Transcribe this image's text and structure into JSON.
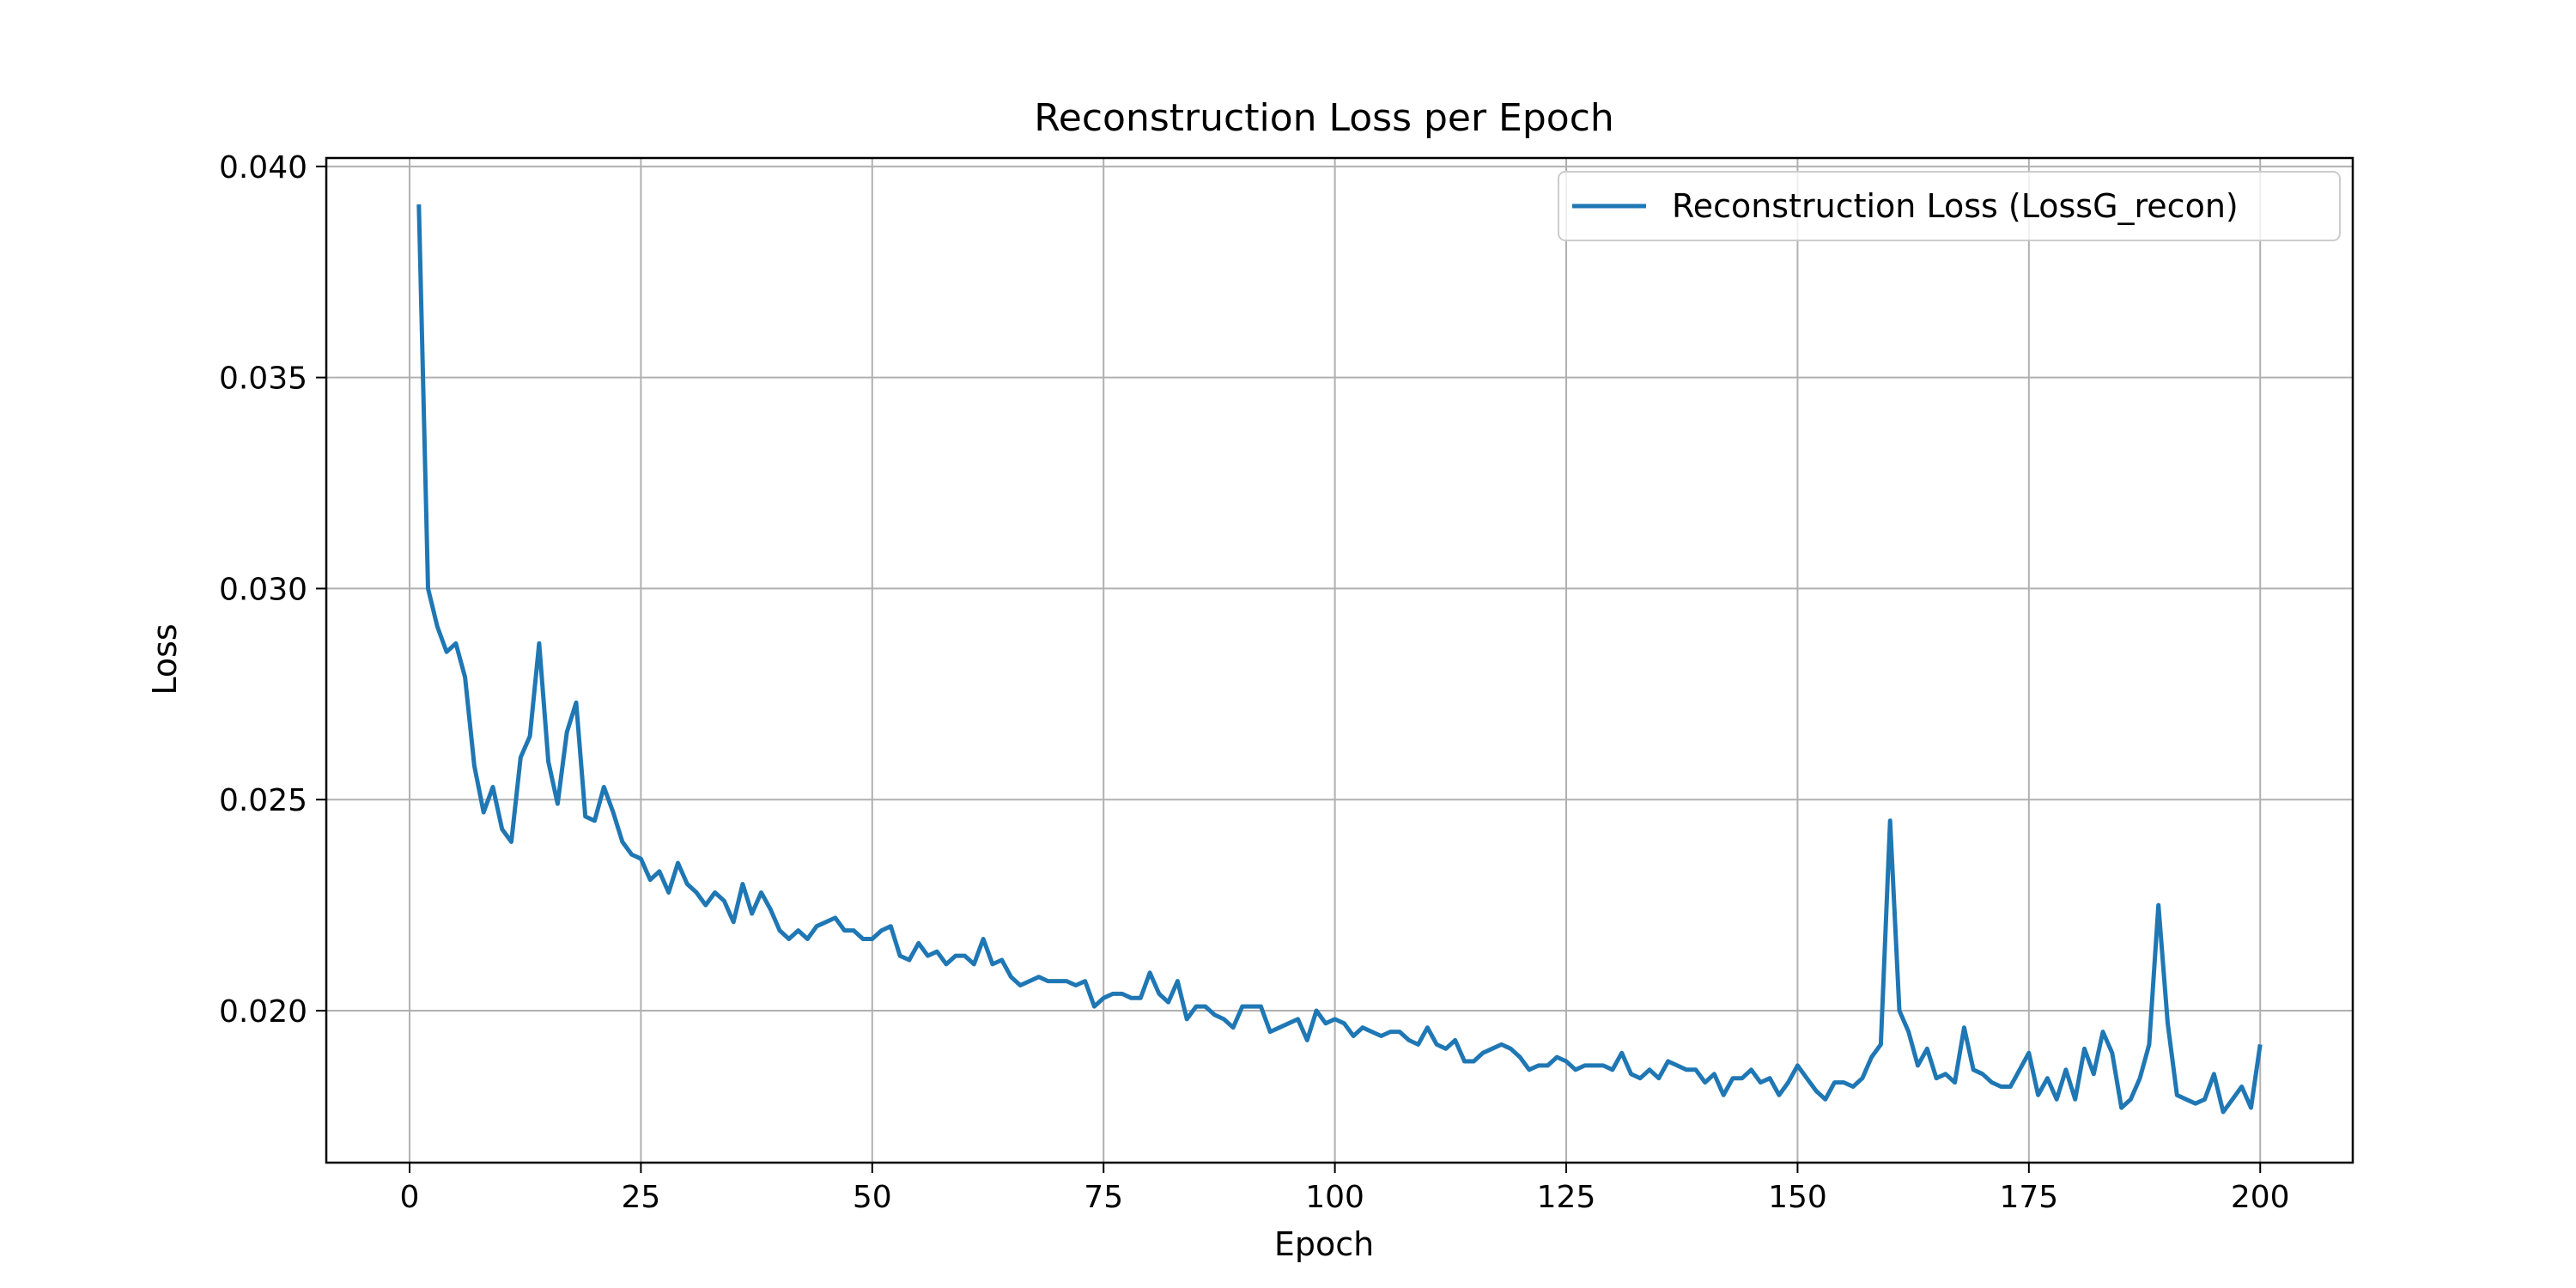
{
  "chart_data": {
    "type": "line",
    "title": "Reconstruction Loss per Epoch",
    "xlabel": "Epoch",
    "ylabel": "Loss",
    "xlim": [
      -9,
      210
    ],
    "ylim": [
      0.0164,
      0.0402
    ],
    "xticks": [
      0,
      25,
      50,
      75,
      100,
      125,
      150,
      175,
      200
    ],
    "xtick_labels": [
      "0",
      "25",
      "50",
      "75",
      "100",
      "125",
      "150",
      "175",
      "200"
    ],
    "yticks": [
      0.02,
      0.025,
      0.03,
      0.035,
      0.04
    ],
    "ytick_labels": [
      "0.020",
      "0.025",
      "0.030",
      "0.035",
      "0.040"
    ],
    "grid": true,
    "legend_position": "top-right",
    "color": "#1f77b4",
    "series": [
      {
        "name": "Reconstruction Loss (LossG_recon)",
        "x": [
          1,
          2,
          3,
          4,
          5,
          6,
          7,
          8,
          9,
          10,
          11,
          12,
          13,
          14,
          15,
          16,
          17,
          18,
          19,
          20,
          21,
          22,
          23,
          24,
          25,
          26,
          27,
          28,
          29,
          30,
          31,
          32,
          33,
          34,
          35,
          36,
          37,
          38,
          39,
          40,
          41,
          42,
          43,
          44,
          45,
          46,
          47,
          48,
          49,
          50,
          51,
          52,
          53,
          54,
          55,
          56,
          57,
          58,
          59,
          60,
          61,
          62,
          63,
          64,
          65,
          66,
          67,
          68,
          69,
          70,
          71,
          72,
          73,
          74,
          75,
          76,
          77,
          78,
          79,
          80,
          81,
          82,
          83,
          84,
          85,
          86,
          87,
          88,
          89,
          90,
          91,
          92,
          93,
          94,
          95,
          96,
          97,
          98,
          99,
          100,
          101,
          102,
          103,
          104,
          105,
          106,
          107,
          108,
          109,
          110,
          111,
          112,
          113,
          114,
          115,
          116,
          117,
          118,
          119,
          120,
          121,
          122,
          123,
          124,
          125,
          126,
          127,
          128,
          129,
          130,
          131,
          132,
          133,
          134,
          135,
          136,
          137,
          138,
          139,
          140,
          141,
          142,
          143,
          144,
          145,
          146,
          147,
          148,
          149,
          150,
          151,
          152,
          153,
          154,
          155,
          156,
          157,
          158,
          159,
          160,
          161,
          162,
          163,
          164,
          165,
          166,
          167,
          168,
          169,
          170,
          171,
          172,
          173,
          174,
          175,
          176,
          177,
          178,
          179,
          180,
          181,
          182,
          183,
          184,
          185,
          186,
          187,
          188,
          189,
          190,
          191,
          192,
          193,
          194,
          195,
          196,
          197,
          198,
          199,
          200
        ],
        "values": [
          0.0391,
          0.03,
          0.0291,
          0.0285,
          0.0287,
          0.0279,
          0.0258,
          0.0247,
          0.0253,
          0.0243,
          0.024,
          0.026,
          0.0265,
          0.0287,
          0.0259,
          0.0249,
          0.0266,
          0.0273,
          0.0246,
          0.0245,
          0.0253,
          0.0247,
          0.024,
          0.0237,
          0.0236,
          0.0231,
          0.0233,
          0.0228,
          0.0235,
          0.023,
          0.0228,
          0.0225,
          0.0228,
          0.0226,
          0.0221,
          0.023,
          0.0223,
          0.0228,
          0.0224,
          0.0219,
          0.0217,
          0.0219,
          0.0217,
          0.022,
          0.0221,
          0.0222,
          0.0219,
          0.0219,
          0.0217,
          0.0217,
          0.0219,
          0.022,
          0.0213,
          0.0212,
          0.0216,
          0.0213,
          0.0214,
          0.0211,
          0.0213,
          0.0213,
          0.0211,
          0.0217,
          0.0211,
          0.0212,
          0.0208,
          0.0206,
          0.0207,
          0.0208,
          0.0207,
          0.0207,
          0.0207,
          0.0206,
          0.0207,
          0.0201,
          0.0203,
          0.0204,
          0.0204,
          0.0203,
          0.0203,
          0.0209,
          0.0204,
          0.0202,
          0.0207,
          0.0198,
          0.0201,
          0.0201,
          0.0199,
          0.0198,
          0.0196,
          0.0201,
          0.0201,
          0.0201,
          0.0195,
          0.0196,
          0.0197,
          0.0198,
          0.0193,
          0.02,
          0.0197,
          0.0198,
          0.0197,
          0.0194,
          0.0196,
          0.0195,
          0.0194,
          0.0195,
          0.0195,
          0.0193,
          0.0192,
          0.0196,
          0.0192,
          0.0191,
          0.0193,
          0.0188,
          0.0188,
          0.019,
          0.0191,
          0.0192,
          0.0191,
          0.0189,
          0.0186,
          0.0187,
          0.0187,
          0.0189,
          0.0188,
          0.0186,
          0.0187,
          0.0187,
          0.0187,
          0.0186,
          0.019,
          0.0185,
          0.0184,
          0.0186,
          0.0184,
          0.0188,
          0.0187,
          0.0186,
          0.0186,
          0.0183,
          0.0185,
          0.018,
          0.0184,
          0.0184,
          0.0186,
          0.0183,
          0.0184,
          0.018,
          0.0183,
          0.0187,
          0.0184,
          0.0181,
          0.0179,
          0.0183,
          0.0183,
          0.0182,
          0.0184,
          0.0189,
          0.0192,
          0.0245,
          0.02,
          0.0195,
          0.0187,
          0.0191,
          0.0184,
          0.0185,
          0.0183,
          0.0196,
          0.0186,
          0.0185,
          0.0183,
          0.0182,
          0.0182,
          0.0186,
          0.019,
          0.018,
          0.0184,
          0.0179,
          0.0186,
          0.0179,
          0.0191,
          0.0185,
          0.0195,
          0.019,
          0.0177,
          0.0179,
          0.0184,
          0.0192,
          0.0225,
          0.0197,
          0.018,
          0.0179,
          0.0178,
          0.0179,
          0.0185,
          0.0176,
          0.0179,
          0.0182,
          0.0177,
          0.0192
        ]
      }
    ]
  }
}
